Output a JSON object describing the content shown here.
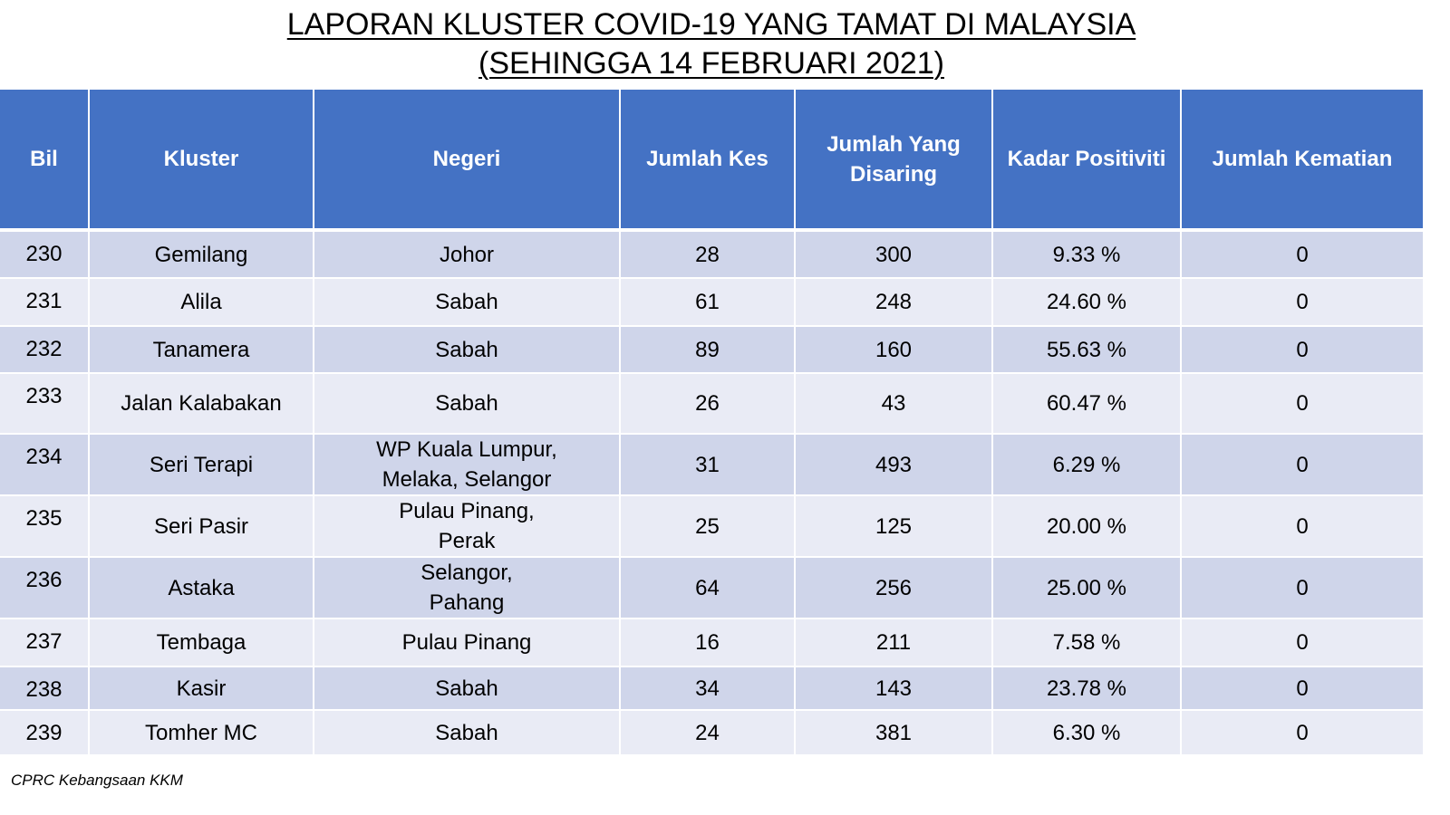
{
  "title": {
    "line1": "LAPORAN KLUSTER COVID-19 YANG TAMAT DI MALAYSIA",
    "line2": "(SEHINGGA 14 FEBRUARI 2021)"
  },
  "table": {
    "headers": {
      "bil": "Bil",
      "kluster": "Kluster",
      "negeri": "Negeri",
      "jumlah_kes": "Jumlah Kes",
      "jumlah_disaring_line1": "Jumlah Yang",
      "jumlah_disaring_line2": "Disaring",
      "kadar_positiviti": "Kadar Positiviti",
      "jumlah_kematian": "Jumlah Kematian"
    },
    "rows": [
      {
        "bil": "230",
        "kluster": "Gemilang",
        "negeri_line1": "Johor",
        "negeri_line2": "",
        "jumlah_kes": "28",
        "jumlah_disaring": "300",
        "kadar_positiviti": "9.33 %",
        "jumlah_kematian": "0"
      },
      {
        "bil": "231",
        "kluster": "Alila",
        "negeri_line1": "Sabah",
        "negeri_line2": "",
        "jumlah_kes": "61",
        "jumlah_disaring": "248",
        "kadar_positiviti": "24.60 %",
        "jumlah_kematian": "0"
      },
      {
        "bil": "232",
        "kluster": "Tanamera",
        "negeri_line1": "Sabah",
        "negeri_line2": "",
        "jumlah_kes": "89",
        "jumlah_disaring": "160",
        "kadar_positiviti": "55.63 %",
        "jumlah_kematian": "0"
      },
      {
        "bil": "233",
        "kluster": "Jalan Kalabakan",
        "negeri_line1": "Sabah",
        "negeri_line2": "",
        "jumlah_kes": "26",
        "jumlah_disaring": "43",
        "kadar_positiviti": "60.47 %",
        "jumlah_kematian": "0"
      },
      {
        "bil": "234",
        "kluster": "Seri Terapi",
        "negeri_line1": "WP Kuala Lumpur,",
        "negeri_line2": "Melaka, Selangor",
        "jumlah_kes": "31",
        "jumlah_disaring": "493",
        "kadar_positiviti": "6.29 %",
        "jumlah_kematian": "0"
      },
      {
        "bil": "235",
        "kluster": "Seri Pasir",
        "negeri_line1": "Pulau Pinang,",
        "negeri_line2": "Perak",
        "jumlah_kes": "25",
        "jumlah_disaring": "125",
        "kadar_positiviti": "20.00 %",
        "jumlah_kematian": "0"
      },
      {
        "bil": "236",
        "kluster": "Astaka",
        "negeri_line1": "Selangor,",
        "negeri_line2": "Pahang",
        "jumlah_kes": "64",
        "jumlah_disaring": "256",
        "kadar_positiviti": "25.00 %",
        "jumlah_kematian": "0"
      },
      {
        "bil": "237",
        "kluster": "Tembaga",
        "negeri_line1": "Pulau Pinang",
        "negeri_line2": "",
        "jumlah_kes": "16",
        "jumlah_disaring": "211",
        "kadar_positiviti": "7.58 %",
        "jumlah_kematian": "0"
      },
      {
        "bil": "238",
        "kluster": "Kasir",
        "negeri_line1": "Sabah",
        "negeri_line2": "",
        "jumlah_kes": "34",
        "jumlah_disaring": "143",
        "kadar_positiviti": "23.78 %",
        "jumlah_kematian": "0"
      },
      {
        "bil": "239",
        "kluster": "Tomher MC",
        "negeri_line1": "Sabah",
        "negeri_line2": "",
        "jumlah_kes": "24",
        "jumlah_disaring": "381",
        "kadar_positiviti": "6.30 %",
        "jumlah_kematian": "0"
      }
    ]
  },
  "footer": {
    "source": "CPRC Kebangsaan KKM"
  },
  "colors": {
    "header_bg": "#4472c4",
    "row_odd_bg": "#cfd5ea",
    "row_even_bg": "#e9ebf5"
  }
}
